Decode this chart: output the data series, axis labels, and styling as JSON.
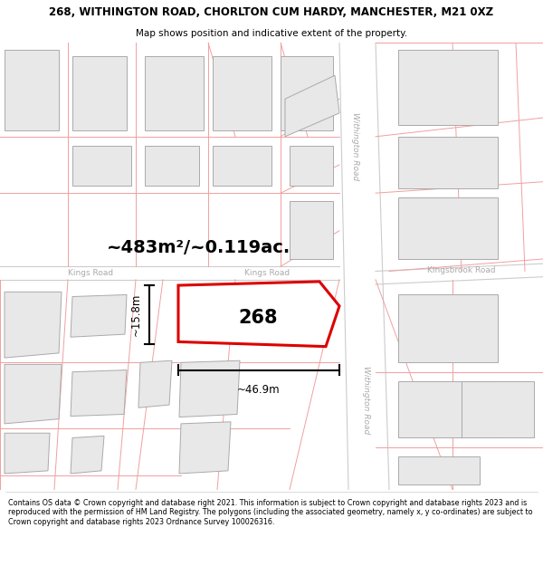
{
  "title_line1": "268, WITHINGTON ROAD, CHORLTON CUM HARDY, MANCHESTER, M21 0XZ",
  "title_line2": "Map shows position and indicative extent of the property.",
  "footer_text": "Contains OS data © Crown copyright and database right 2021. This information is subject to Crown copyright and database rights 2023 and is reproduced with the permission of HM Land Registry. The polygons (including the associated geometry, namely x, y co-ordinates) are subject to Crown copyright and database rights 2023 Ordnance Survey 100026316.",
  "area_label": "~483m²/~0.119ac.",
  "width_label": "~46.9m",
  "height_label": "~15.8m",
  "plot_number": "268",
  "road_label_withington1": "Withington Road",
  "road_label_withington2": "Withington Road",
  "road_label_kings1": "Kings Road",
  "road_label_kings2": "Kings Road",
  "road_label_kingsbrook": "Kingsbrook Road",
  "map_bg": "#ffffff",
  "lot_line_color": "#f0a0a0",
  "road_line_color": "#cccccc",
  "building_fill": "#e8e8e8",
  "building_stroke": "#aaaaaa",
  "highlight_stroke": "#dd0000",
  "highlight_fill": "#ffffff",
  "text_color": "#333333",
  "road_text_color": "#aaaaaa",
  "title_fontsize": 8.5,
  "subtitle_fontsize": 7.5,
  "footer_fontsize": 5.8
}
